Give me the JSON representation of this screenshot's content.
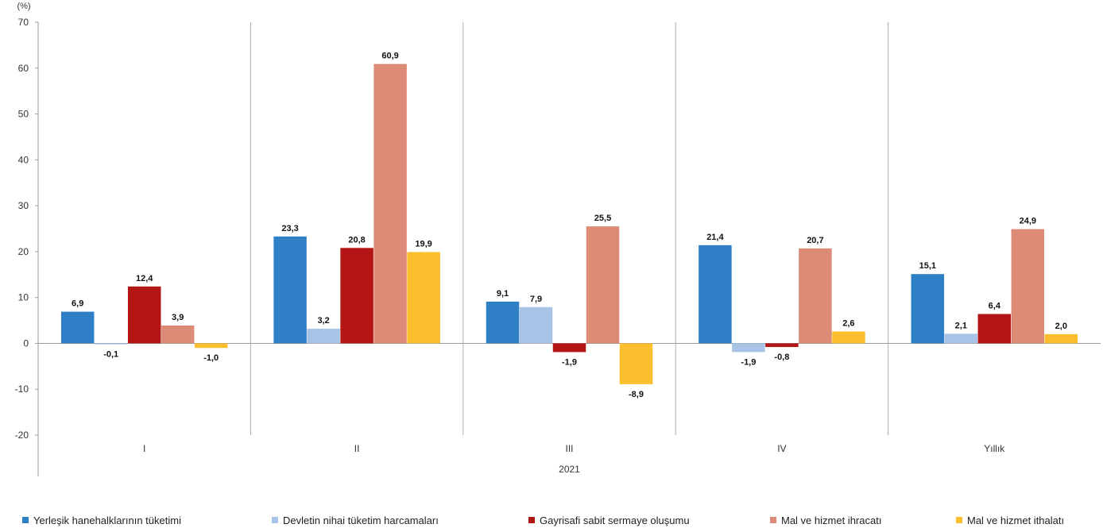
{
  "chart_data": {
    "type": "bar",
    "ylabel": "(%)",
    "xlabel": "2021",
    "ylim": [
      -20,
      70
    ],
    "yticks": [
      70,
      60,
      50,
      40,
      30,
      20,
      10,
      0,
      -10,
      -20
    ],
    "categories": [
      "I",
      "II",
      "III",
      "IV",
      "Yıllık"
    ],
    "series": [
      {
        "name": "Yerleşik hanehalklarının tüketimi",
        "color": "#2f7fc6",
        "values": [
          6.9,
          23.3,
          9.1,
          21.4,
          15.1
        ],
        "labels": [
          "6,9",
          "23,3",
          "9,1",
          "21,4",
          "15,1"
        ]
      },
      {
        "name": "Devletin nihai tüketim harcamaları",
        "color": "#a7c3e6",
        "values": [
          -0.1,
          3.2,
          7.9,
          -1.9,
          2.1
        ],
        "labels": [
          "-0,1",
          "3,2",
          "7,9",
          "-1,9",
          "2,1"
        ]
      },
      {
        "name": "Gayrisafi sabit sermaye oluşumu",
        "color": "#b31515",
        "values": [
          12.4,
          20.8,
          -1.9,
          -0.8,
          6.4
        ],
        "labels": [
          "12,4",
          "20,8",
          "-1,9",
          "-0,8",
          "6,4"
        ]
      },
      {
        "name": "Mal ve hizmet ihracatı",
        "color": "#dc8c76",
        "values": [
          3.9,
          60.9,
          25.5,
          20.7,
          24.9
        ],
        "labels": [
          "3,9",
          "60,9",
          "25,5",
          "20,7",
          "24,9"
        ]
      },
      {
        "name": "Mal ve hizmet ithalatı",
        "color": "#fbbe2d",
        "values": [
          -1.0,
          19.9,
          -8.9,
          2.6,
          2.0
        ],
        "labels": [
          "-1,0",
          "19,9",
          "-8,9",
          "2,6",
          "2,0"
        ]
      }
    ],
    "grid": false,
    "legend_position": "bottom"
  }
}
